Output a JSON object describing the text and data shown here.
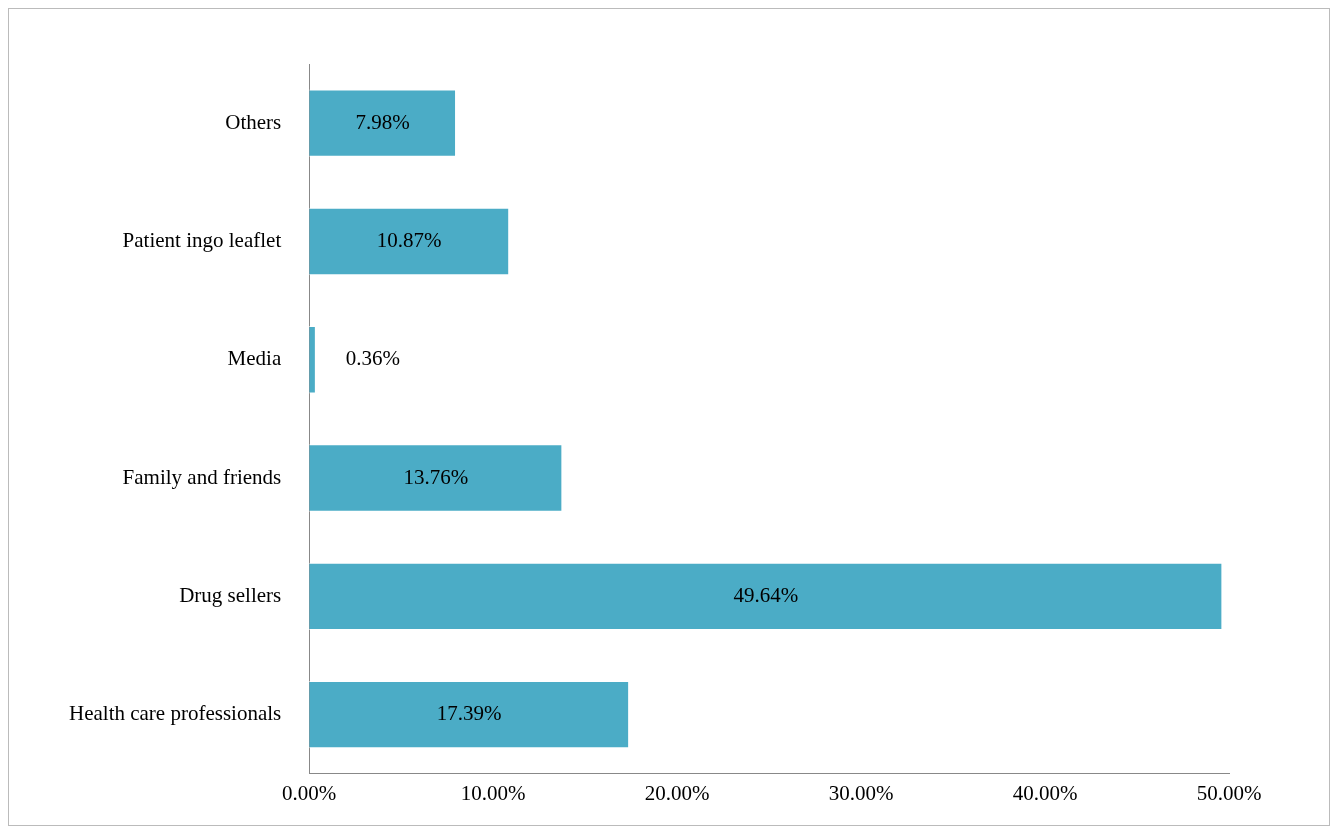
{
  "chart_data": {
    "type": "bar",
    "orientation": "horizontal",
    "categories": [
      "Others",
      "Patient ingo leaflet",
      "Media",
      "Family and friends",
      "Drug sellers",
      "Health care professionals"
    ],
    "values": [
      7.98,
      10.87,
      0.36,
      13.76,
      49.64,
      17.39
    ],
    "value_labels": [
      "7.98%",
      "10.87%",
      "0.36%",
      "13.76%",
      "49.64%",
      "17.39%"
    ],
    "color": "#4bacc6",
    "xlim": [
      0,
      50
    ],
    "xticks": [
      {
        "value": 0,
        "label": "0.00%"
      },
      {
        "value": 10,
        "label": "10.00%"
      },
      {
        "value": 20,
        "label": "20.00%"
      },
      {
        "value": 30,
        "label": "30.00%"
      },
      {
        "value": 40,
        "label": "40.00%"
      },
      {
        "value": 50,
        "label": "50.00%"
      }
    ],
    "grid": false,
    "legend": false
  }
}
